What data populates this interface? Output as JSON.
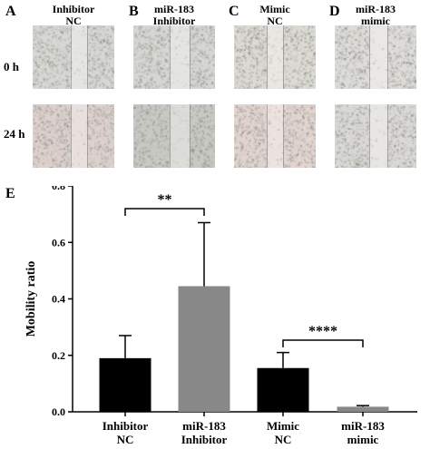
{
  "panels": {
    "A": "A",
    "B": "B",
    "C": "C",
    "D": "D",
    "E": "E"
  },
  "columns": [
    {
      "line1": "Inhibitor",
      "line2": "NC"
    },
    {
      "line1": "miR-183",
      "line2": "Inhibitor"
    },
    {
      "line1": "Mimic",
      "line2": "NC"
    },
    {
      "line1": "miR-183",
      "line2": "mimic"
    }
  ],
  "rows": [
    "0 h",
    "24 h"
  ],
  "micrographs": {
    "tints": [
      [
        "#d7d7d3",
        "#d6d6d2",
        "#dcdad4",
        "#dddcd8"
      ],
      [
        "#ddd0cd",
        "#c9c9c4",
        "#e2d4cf",
        "#dad9d6"
      ]
    ]
  },
  "chart_data": {
    "type": "bar",
    "categories": [
      "Inhibitor NC",
      "miR-183 Inhibitor",
      "Mimic NC",
      "miR-183 mimic"
    ],
    "category_lines": [
      [
        "Inhibitor",
        "NC"
      ],
      [
        "miR-183",
        "Inhibitor"
      ],
      [
        "Mimic",
        "NC"
      ],
      [
        "miR-183",
        "mimic"
      ]
    ],
    "values": [
      0.19,
      0.445,
      0.155,
      0.018
    ],
    "errors": [
      0.08,
      0.225,
      0.055,
      0.004
    ],
    "bar_colors": [
      "#000000",
      "#888888",
      "#000000",
      "#888888"
    ],
    "ylabel": "Mobility ratio",
    "ylim": [
      0,
      0.8
    ],
    "yticks": [
      "0.0",
      "0.2",
      "0.4",
      "0.6",
      "0.8"
    ],
    "significance": [
      {
        "between": [
          0,
          1
        ],
        "label": "**"
      },
      {
        "between": [
          2,
          3
        ],
        "label": "****"
      }
    ]
  }
}
